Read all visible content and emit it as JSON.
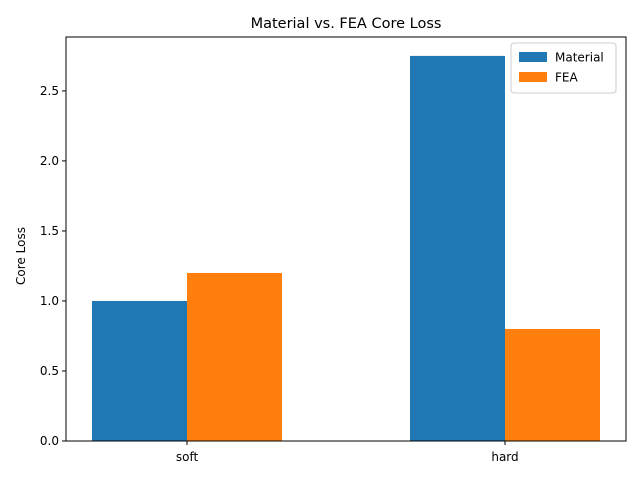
{
  "chart_data": {
    "type": "bar",
    "title": "Material vs. FEA Core Loss",
    "xlabel": "",
    "ylabel": "Core Loss",
    "categories": [
      "soft",
      "hard"
    ],
    "series": [
      {
        "name": "Material",
        "values": [
          1.0,
          2.75
        ],
        "color": "#1f77b4"
      },
      {
        "name": "FEA",
        "values": [
          1.2,
          0.8
        ],
        "color": "#ff7f0e"
      }
    ],
    "ylim": [
      0,
      2.885
    ],
    "yticks": [
      0.0,
      0.5,
      1.0,
      1.5,
      2.0,
      2.5
    ],
    "ytick_labels": [
      "0.0",
      "0.5",
      "1.0",
      "1.5",
      "2.0",
      "2.5"
    ],
    "grid": false,
    "legend_position": "top-right"
  }
}
